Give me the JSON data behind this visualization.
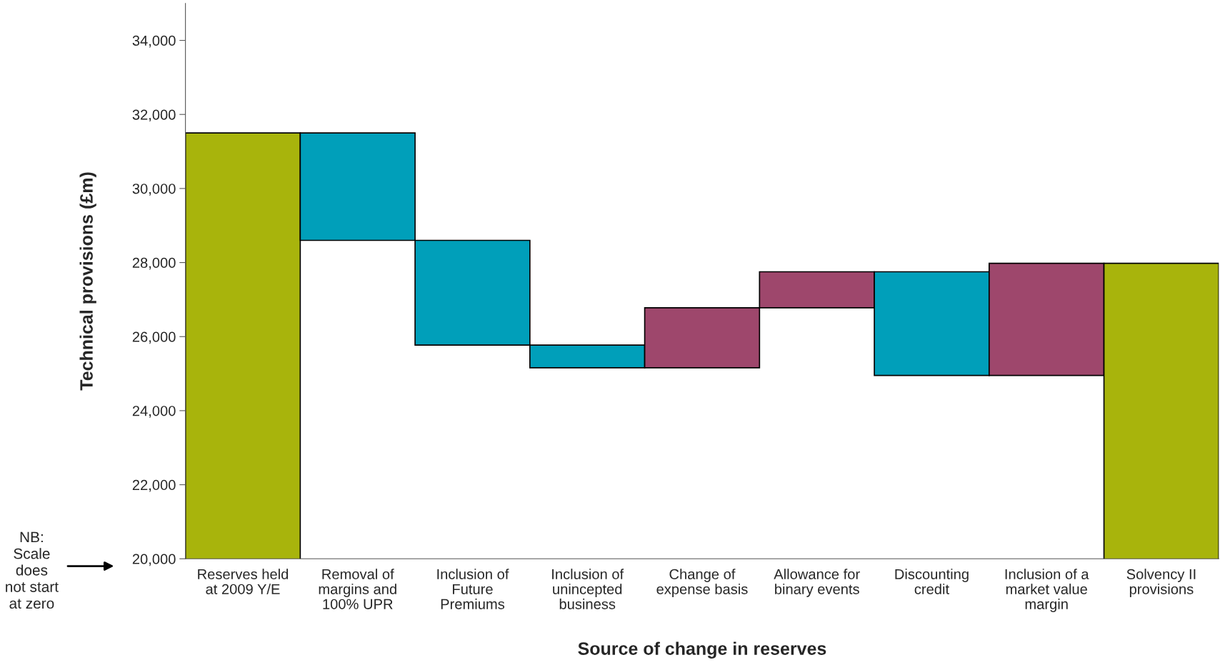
{
  "chart_data": {
    "type": "bar",
    "xlabel": "Source of change in reserves",
    "ylabel": "Technical provisions (£m)",
    "categories": [
      "Reserves held\nat 2009 Y/E",
      "Removal of\nmargins and\n100% UPR",
      "Inclusion of\nFuture\nPremiums",
      "Inclusion of\nunincepted\nbusiness",
      "Change of\nexpense basis",
      "Allowance for\nbinary events",
      "Discounting\ncredit",
      "Inclusion of a\nmarket value\nmargin",
      "Solvency II\nprovisions"
    ],
    "values": [
      31500,
      -2900,
      -2830,
      -610,
      1620,
      970,
      -2800,
      3030,
      27980
    ],
    "base": [
      null,
      31500,
      28600,
      25770,
      25160,
      26780,
      27750,
      24950,
      null
    ],
    "colors": [
      "#a8b40c",
      "#009fba",
      "#009fba",
      "#009fba",
      "#9e476c",
      "#9e476c",
      "#009fba",
      "#9e476c",
      "#a8b40c"
    ],
    "ylim": [
      20000,
      35000
    ],
    "yticks": [
      {
        "value": 20000,
        "label": "20,000"
      },
      {
        "value": 22000,
        "label": "22,000"
      },
      {
        "value": 24000,
        "label": "24,000"
      },
      {
        "value": 26000,
        "label": "26,000"
      },
      {
        "value": 28000,
        "label": "28,000"
      },
      {
        "value": 30000,
        "label": "30,000"
      },
      {
        "value": 32000,
        "label": "32,000"
      },
      {
        "value": 34000,
        "label": "34,000"
      }
    ],
    "grid": false,
    "legend": false,
    "annotations": [
      "NB:\nScale\ndoes\nnot start\nat zero"
    ]
  }
}
